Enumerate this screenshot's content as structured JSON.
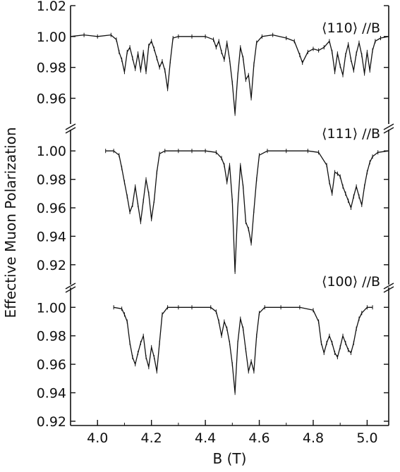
{
  "chart_data": {
    "type": "line",
    "xlabel": "B (T)",
    "ylabel": "Effective Muon Polarization",
    "xlim": [
      3.9,
      5.08
    ],
    "x_ticks": [
      "4.0",
      "4.2",
      "4.4",
      "4.6",
      "4.8",
      "5.0"
    ],
    "grid": false,
    "legend": "none",
    "line_color": "#111111",
    "panels": [
      {
        "label": "⟨110⟩ //B",
        "ylim": [
          0.947,
          1.02
        ],
        "y_ticks": [
          "1.02",
          "1.00",
          "0.98",
          "0.96"
        ],
        "series": [
          {
            "points": [
              [
                3.9,
                1.0
              ],
              [
                3.95,
                1.001
              ],
              [
                4.0,
                1.0
              ],
              [
                4.05,
                1.001
              ],
              [
                4.07,
                0.998
              ],
              [
                4.08,
                0.99
              ],
              [
                4.09,
                0.985
              ],
              [
                4.1,
                0.977
              ],
              [
                4.11,
                0.99
              ],
              [
                4.12,
                0.993
              ],
              [
                4.13,
                0.986
              ],
              [
                4.14,
                0.979
              ],
              [
                4.15,
                0.989
              ],
              [
                4.16,
                0.978
              ],
              [
                4.17,
                0.99
              ],
              [
                4.18,
                0.977
              ],
              [
                4.19,
                0.994
              ],
              [
                4.2,
                0.997
              ],
              [
                4.21,
                0.992
              ],
              [
                4.22,
                0.986
              ],
              [
                4.23,
                0.98
              ],
              [
                4.24,
                0.984
              ],
              [
                4.25,
                0.978
              ],
              [
                4.26,
                0.966
              ],
              [
                4.27,
                0.984
              ],
              [
                4.28,
                0.999
              ],
              [
                4.3,
                1.0
              ],
              [
                4.35,
                1.0
              ],
              [
                4.4,
                1.0
              ],
              [
                4.43,
                0.998
              ],
              [
                4.44,
                0.993
              ],
              [
                4.45,
                0.997
              ],
              [
                4.46,
                0.99
              ],
              [
                4.47,
                0.985
              ],
              [
                4.48,
                0.996
              ],
              [
                4.49,
                0.985
              ],
              [
                4.5,
                0.97
              ],
              [
                4.51,
                0.95
              ],
              [
                4.52,
                0.975
              ],
              [
                4.53,
                0.993
              ],
              [
                4.54,
                0.986
              ],
              [
                4.55,
                0.972
              ],
              [
                4.56,
                0.975
              ],
              [
                4.57,
                0.96
              ],
              [
                4.58,
                0.982
              ],
              [
                4.59,
                0.996
              ],
              [
                4.61,
                1.0
              ],
              [
                4.65,
                1.001
              ],
              [
                4.7,
                0.999
              ],
              [
                4.73,
                0.997
              ],
              [
                4.75,
                0.988
              ],
              [
                4.76,
                0.983
              ],
              [
                4.78,
                0.99
              ],
              [
                4.8,
                0.992
              ],
              [
                4.82,
                0.991
              ],
              [
                4.84,
                0.993
              ],
              [
                4.86,
                0.997
              ],
              [
                4.87,
                0.99
              ],
              [
                4.88,
                0.977
              ],
              [
                4.89,
                0.989
              ],
              [
                4.9,
                0.981
              ],
              [
                4.91,
                0.975
              ],
              [
                4.92,
                0.988
              ],
              [
                4.93,
                0.995
              ],
              [
                4.94,
                0.985
              ],
              [
                4.95,
                0.978
              ],
              [
                4.96,
                0.989
              ],
              [
                4.97,
                0.996
              ],
              [
                4.98,
                0.988
              ],
              [
                4.99,
                0.976
              ],
              [
                5.0,
                0.99
              ],
              [
                5.01,
                0.978
              ],
              [
                5.02,
                0.991
              ],
              [
                5.03,
                0.997
              ],
              [
                5.05,
                0.999
              ],
              [
                5.08,
                1.0
              ]
            ]
          }
        ]
      },
      {
        "label": "⟨111⟩ //B",
        "ylim": [
          0.909,
          1.012
        ],
        "y_ticks": [
          "1.00",
          "0.98",
          "0.96",
          "0.94",
          "0.92"
        ],
        "series": [
          {
            "points": [
              [
                4.03,
                1.0
              ],
              [
                4.06,
                1.0
              ],
              [
                4.08,
                0.997
              ],
              [
                4.09,
                0.988
              ],
              [
                4.1,
                0.978
              ],
              [
                4.11,
                0.968
              ],
              [
                4.12,
                0.957
              ],
              [
                4.13,
                0.962
              ],
              [
                4.14,
                0.975
              ],
              [
                4.15,
                0.962
              ],
              [
                4.16,
                0.95
              ],
              [
                4.17,
                0.965
              ],
              [
                4.18,
                0.98
              ],
              [
                4.19,
                0.97
              ],
              [
                4.2,
                0.952
              ],
              [
                4.21,
                0.965
              ],
              [
                4.22,
                0.985
              ],
              [
                4.23,
                0.998
              ],
              [
                4.25,
                1.0
              ],
              [
                4.3,
                1.0
              ],
              [
                4.35,
                1.0
              ],
              [
                4.4,
                1.0
              ],
              [
                4.44,
                0.999
              ],
              [
                4.46,
                0.995
              ],
              [
                4.47,
                0.99
              ],
              [
                4.48,
                0.978
              ],
              [
                4.49,
                0.99
              ],
              [
                4.5,
                0.965
              ],
              [
                4.51,
                0.915
              ],
              [
                4.52,
                0.96
              ],
              [
                4.53,
                0.99
              ],
              [
                4.54,
                0.975
              ],
              [
                4.55,
                0.95
              ],
              [
                4.56,
                0.945
              ],
              [
                4.57,
                0.935
              ],
              [
                4.58,
                0.958
              ],
              [
                4.59,
                0.98
              ],
              [
                4.6,
                0.997
              ],
              [
                4.63,
                1.0
              ],
              [
                4.7,
                1.0
              ],
              [
                4.78,
                1.0
              ],
              [
                4.82,
                0.999
              ],
              [
                4.85,
                0.99
              ],
              [
                4.86,
                0.978
              ],
              [
                4.87,
                0.97
              ],
              [
                4.88,
                0.985
              ],
              [
                4.89,
                0.984
              ],
              [
                4.9,
                0.982
              ],
              [
                4.91,
                0.975
              ],
              [
                4.92,
                0.97
              ],
              [
                4.93,
                0.965
              ],
              [
                4.94,
                0.96
              ],
              [
                4.95,
                0.968
              ],
              [
                4.96,
                0.975
              ],
              [
                4.97,
                0.968
              ],
              [
                4.98,
                0.962
              ],
              [
                4.99,
                0.975
              ],
              [
                5.0,
                0.985
              ],
              [
                5.01,
                0.992
              ],
              [
                5.02,
                0.996
              ],
              [
                5.04,
                0.999
              ],
              [
                5.08,
                1.0
              ]
            ]
          }
        ]
      },
      {
        "label": "⟨100⟩ //B",
        "ylim": [
          0.917,
          1.012
        ],
        "y_ticks": [
          "1.00",
          "0.98",
          "0.96",
          "0.94",
          "0.92"
        ],
        "series": [
          {
            "points": [
              [
                4.06,
                1.0
              ],
              [
                4.09,
                0.999
              ],
              [
                4.1,
                0.995
              ],
              [
                4.11,
                0.99
              ],
              [
                4.12,
                0.975
              ],
              [
                4.13,
                0.965
              ],
              [
                4.14,
                0.96
              ],
              [
                4.15,
                0.968
              ],
              [
                4.16,
                0.975
              ],
              [
                4.17,
                0.98
              ],
              [
                4.18,
                0.965
              ],
              [
                4.19,
                0.958
              ],
              [
                4.2,
                0.972
              ],
              [
                4.21,
                0.965
              ],
              [
                4.22,
                0.955
              ],
              [
                4.23,
                0.975
              ],
              [
                4.24,
                0.995
              ],
              [
                4.26,
                1.0
              ],
              [
                4.3,
                1.0
              ],
              [
                4.35,
                1.0
              ],
              [
                4.42,
                1.0
              ],
              [
                4.44,
                0.997
              ],
              [
                4.45,
                0.99
              ],
              [
                4.46,
                0.98
              ],
              [
                4.47,
                0.99
              ],
              [
                4.48,
                0.985
              ],
              [
                4.49,
                0.975
              ],
              [
                4.5,
                0.96
              ],
              [
                4.51,
                0.94
              ],
              [
                4.52,
                0.975
              ],
              [
                4.53,
                0.992
              ],
              [
                4.54,
                0.985
              ],
              [
                4.55,
                0.97
              ],
              [
                4.56,
                0.955
              ],
              [
                4.57,
                0.962
              ],
              [
                4.58,
                0.955
              ],
              [
                4.59,
                0.98
              ],
              [
                4.6,
                0.996
              ],
              [
                4.62,
                1.0
              ],
              [
                4.68,
                1.0
              ],
              [
                4.75,
                1.0
              ],
              [
                4.8,
                0.998
              ],
              [
                4.82,
                0.99
              ],
              [
                4.83,
                0.975
              ],
              [
                4.84,
                0.968
              ],
              [
                4.85,
                0.975
              ],
              [
                4.86,
                0.98
              ],
              [
                4.87,
                0.975
              ],
              [
                4.88,
                0.968
              ],
              [
                4.89,
                0.965
              ],
              [
                4.9,
                0.972
              ],
              [
                4.91,
                0.98
              ],
              [
                4.92,
                0.975
              ],
              [
                4.93,
                0.97
              ],
              [
                4.94,
                0.968
              ],
              [
                4.95,
                0.975
              ],
              [
                4.96,
                0.985
              ],
              [
                4.97,
                0.992
              ],
              [
                4.98,
                0.996
              ],
              [
                5.0,
                1.0
              ],
              [
                5.02,
                1.0
              ]
            ]
          }
        ]
      }
    ]
  }
}
